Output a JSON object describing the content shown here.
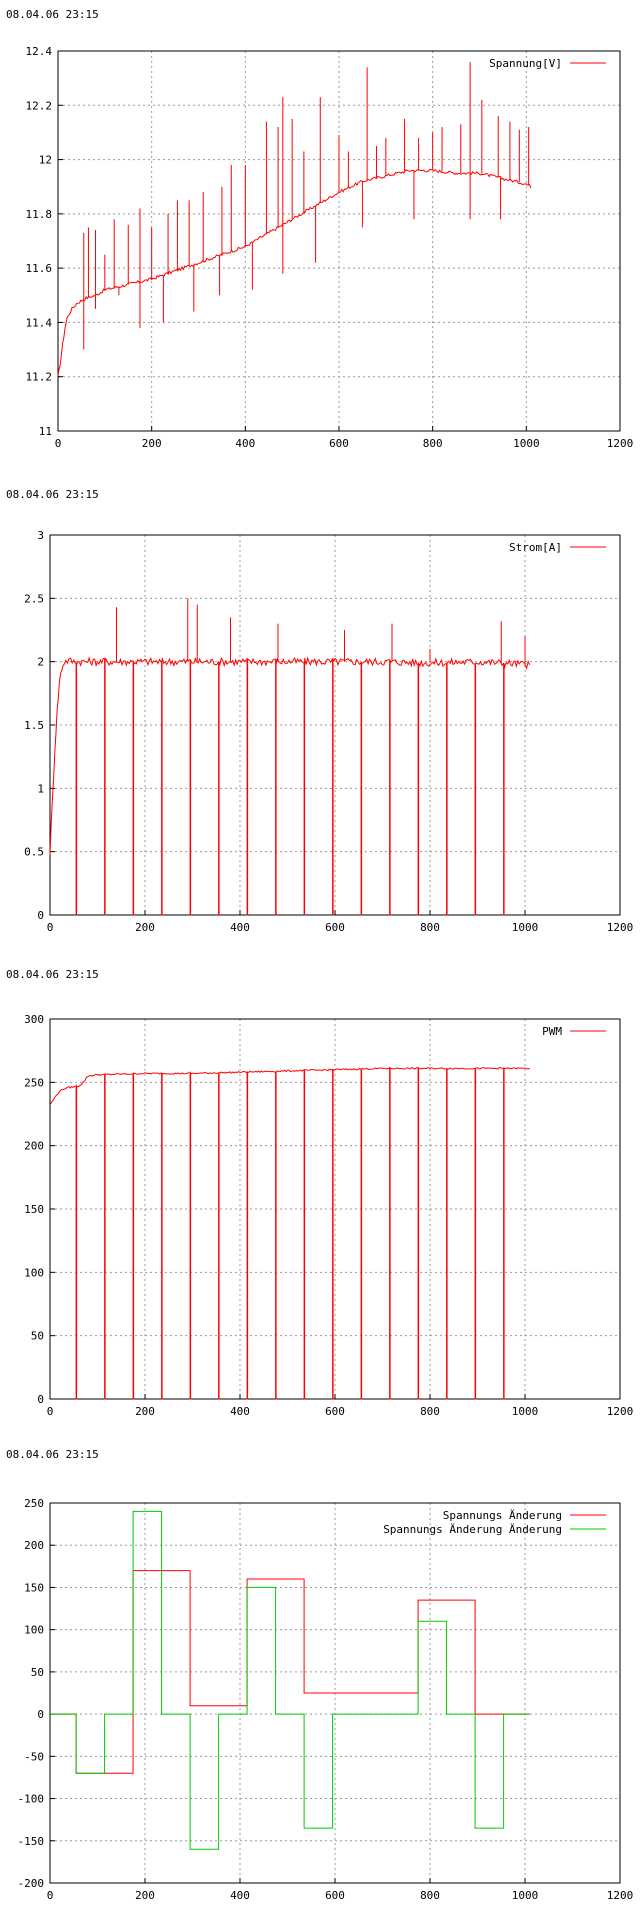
{
  "chart_data": [
    {
      "type": "line",
      "timestamp": "08.04.06 23:15",
      "xlim": [
        0,
        1200
      ],
      "ylim": [
        11,
        12.4
      ],
      "xticks": [
        0,
        200,
        400,
        600,
        800,
        1000,
        1200
      ],
      "yticks": [
        11,
        11.2,
        11.4,
        11.6,
        11.8,
        12,
        12.2,
        12.4
      ],
      "grid": true,
      "legend_position": "top-right",
      "series": [
        {
          "name": "Spannung[V]",
          "color": "#ff0000",
          "x": [
            0,
            5,
            10,
            15,
            20,
            30,
            40,
            60,
            80,
            100,
            150,
            200,
            250,
            300,
            350,
            400,
            450,
            500,
            550,
            600,
            650,
            700,
            750,
            800,
            850,
            900,
            950,
            1000,
            1010
          ],
          "y": [
            11.2,
            11.25,
            11.32,
            11.38,
            11.42,
            11.45,
            11.47,
            11.49,
            11.5,
            11.52,
            11.54,
            11.56,
            11.59,
            11.62,
            11.65,
            11.68,
            11.73,
            11.78,
            11.83,
            11.88,
            11.92,
            11.94,
            11.96,
            11.96,
            11.95,
            11.95,
            11.93,
            11.91,
            11.9
          ],
          "spikes_up": [
            [
              55,
              11.73
            ],
            [
              65,
              11.75
            ],
            [
              80,
              11.74
            ],
            [
              100,
              11.65
            ],
            [
              120,
              11.78
            ],
            [
              150,
              11.76
            ],
            [
              175,
              11.82
            ],
            [
              200,
              11.75
            ],
            [
              235,
              11.8
            ],
            [
              255,
              11.85
            ],
            [
              280,
              11.85
            ],
            [
              310,
              11.88
            ],
            [
              350,
              11.9
            ],
            [
              370,
              11.98
            ],
            [
              400,
              11.98
            ],
            [
              445,
              12.14
            ],
            [
              470,
              12.12
            ],
            [
              480,
              12.23
            ],
            [
              500,
              12.15
            ],
            [
              525,
              12.03
            ],
            [
              560,
              12.23
            ],
            [
              600,
              12.09
            ],
            [
              620,
              12.03
            ],
            [
              660,
              12.34
            ],
            [
              680,
              12.05
            ],
            [
              700,
              12.08
            ],
            [
              740,
              12.15
            ],
            [
              770,
              12.08
            ],
            [
              800,
              12.1
            ],
            [
              820,
              12.12
            ],
            [
              860,
              12.13
            ],
            [
              880,
              12.36
            ],
            [
              905,
              12.22
            ],
            [
              940,
              12.16
            ],
            [
              965,
              12.14
            ],
            [
              985,
              12.11
            ],
            [
              1005,
              12.12
            ]
          ],
          "spikes_down": [
            [
              55,
              11.3
            ],
            [
              80,
              11.45
            ],
            [
              130,
              11.5
            ],
            [
              175,
              11.38
            ],
            [
              225,
              11.4
            ],
            [
              290,
              11.44
            ],
            [
              345,
              11.5
            ],
            [
              415,
              11.52
            ],
            [
              480,
              11.58
            ],
            [
              550,
              11.62
            ],
            [
              650,
              11.75
            ],
            [
              760,
              11.78
            ],
            [
              880,
              11.78
            ],
            [
              945,
              11.78
            ]
          ]
        }
      ]
    },
    {
      "type": "line",
      "timestamp": "08.04.06 23:15",
      "xlim": [
        0,
        1200
      ],
      "ylim": [
        0,
        3
      ],
      "xticks": [
        0,
        200,
        400,
        600,
        800,
        1000,
        1200
      ],
      "yticks": [
        0,
        0.5,
        1,
        1.5,
        2,
        2.5,
        3
      ],
      "grid": true,
      "legend_position": "top-right",
      "series": [
        {
          "name": "Strom[A]",
          "color": "#ff0000",
          "x": [
            0,
            5,
            10,
            15,
            20,
            25,
            30,
            40,
            50,
            100,
            200,
            300,
            400,
            500,
            600,
            700,
            800,
            900,
            1000,
            1010
          ],
          "y": [
            0.5,
            0.9,
            1.3,
            1.6,
            1.85,
            1.95,
            2.0,
            2.01,
            2.0,
            2.0,
            2.0,
            2.0,
            2.0,
            2.0,
            2.0,
            2.0,
            1.99,
            2.0,
            1.98,
            1.97
          ],
          "dropouts": [
            55,
            115,
            175,
            235,
            295,
            355,
            415,
            475,
            535,
            595,
            655,
            715,
            775,
            835,
            895,
            955
          ],
          "peaks": [
            [
              140,
              2.43
            ],
            [
              290,
              2.5
            ],
            [
              310,
              2.45
            ],
            [
              380,
              2.35
            ],
            [
              480,
              2.3
            ],
            [
              620,
              2.25
            ],
            [
              720,
              2.3
            ],
            [
              800,
              2.1
            ],
            [
              950,
              2.32
            ],
            [
              1000,
              2.2
            ]
          ]
        }
      ]
    },
    {
      "type": "line",
      "timestamp": "08.04.06 23:15",
      "xlim": [
        0,
        1200
      ],
      "ylim": [
        0,
        300
      ],
      "xticks": [
        0,
        200,
        400,
        600,
        800,
        1000,
        1200
      ],
      "yticks": [
        0,
        50,
        100,
        150,
        200,
        250,
        300
      ],
      "grid": true,
      "legend_position": "top-right",
      "series": [
        {
          "name": "PWM",
          "color": "#ff0000",
          "x": [
            0,
            10,
            20,
            30,
            40,
            60,
            70,
            80,
            100,
            200,
            300,
            400,
            500,
            600,
            700,
            800,
            900,
            1000,
            1010
          ],
          "y": [
            232,
            238,
            243,
            245,
            246,
            247,
            250,
            255,
            256,
            257,
            257,
            258,
            259,
            260,
            261,
            261,
            261,
            261,
            261
          ],
          "dropouts": [
            55,
            115,
            175,
            235,
            295,
            355,
            415,
            475,
            535,
            595,
            655,
            715,
            775,
            835,
            895,
            955
          ]
        }
      ]
    },
    {
      "type": "line",
      "timestamp": "08.04.06 23:15",
      "xlim": [
        0,
        1200
      ],
      "ylim": [
        -200,
        250
      ],
      "xticks": [
        0,
        200,
        400,
        600,
        800,
        1000,
        1200
      ],
      "yticks": [
        -200,
        -150,
        -100,
        -50,
        0,
        50,
        100,
        150,
        200,
        250
      ],
      "grid": true,
      "legend_position": "top-right",
      "series": [
        {
          "name": "Spannungs Änderung",
          "color": "#ff0000",
          "step": true,
          "x": [
            0,
            55,
            115,
            175,
            295,
            415,
            535,
            775,
            895,
            1010
          ],
          "y": [
            0,
            -70,
            -70,
            170,
            10,
            160,
            25,
            135,
            0,
            0
          ]
        },
        {
          "name": "Spannungs Änderung Änderung",
          "color": "#00cc00",
          "step": true,
          "x": [
            0,
            55,
            115,
            175,
            235,
            295,
            355,
            415,
            475,
            535,
            595,
            775,
            835,
            895,
            955,
            1010
          ],
          "y": [
            0,
            -70,
            0,
            240,
            0,
            -160,
            0,
            150,
            0,
            -135,
            0,
            110,
            0,
            -135,
            0,
            0
          ]
        }
      ]
    }
  ]
}
